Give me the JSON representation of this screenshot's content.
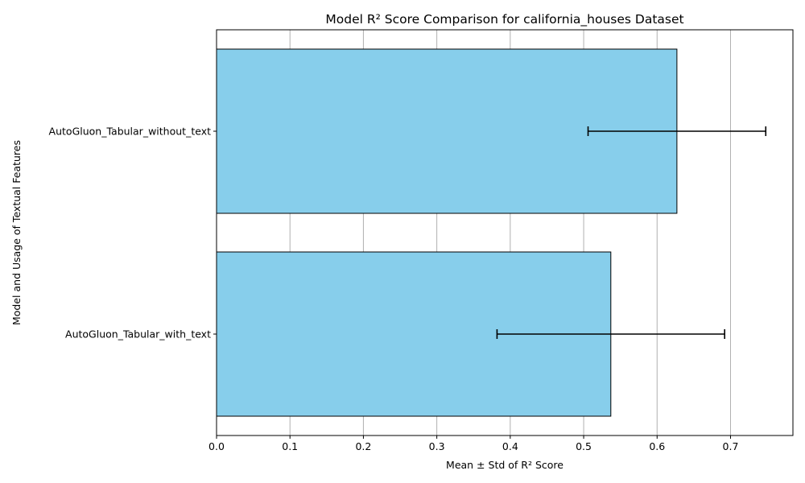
{
  "chart_data": {
    "type": "bar",
    "orientation": "horizontal",
    "title": "Model R² Score Comparison for california_houses Dataset",
    "xlabel": "Mean ± Std of R² Score",
    "ylabel": "Model and Usage of Textual Features",
    "categories": [
      "AutoGluon_Tabular_without_text",
      "AutoGluon_Tabular_with_text"
    ],
    "values": [
      0.627,
      0.537
    ],
    "errors": [
      0.121,
      0.155
    ],
    "xlim": [
      0.0,
      0.785
    ],
    "xticks": [
      "0.0",
      "0.1",
      "0.2",
      "0.3",
      "0.4",
      "0.5",
      "0.6",
      "0.7"
    ],
    "grid": "x",
    "bar_color": "#87ceeb",
    "edge_color": "#000000",
    "grid_color": "#b0b0b0"
  }
}
